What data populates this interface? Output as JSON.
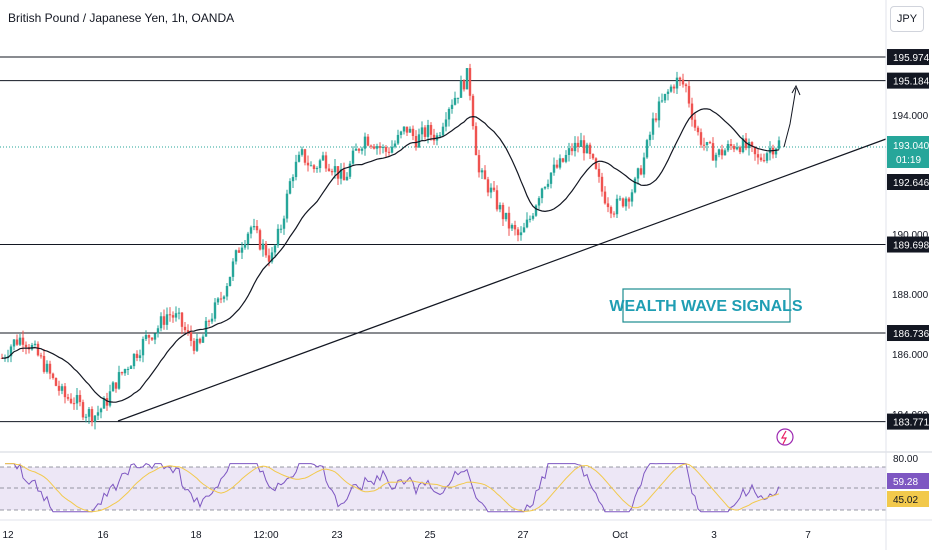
{
  "header": {
    "symbol_title": "British Pound / Japanese Yen, 1h, OANDA",
    "currency_button": "JPY"
  },
  "colors": {
    "up": "#26a69a",
    "down": "#ef5350",
    "ma": "#131722",
    "rsi_line": "#7e57c2",
    "rsi_ma": "#f2c94c",
    "rsi_band": "#ede7f6",
    "accent_teal": "#1b8c8f",
    "price_tag": "#26a69a"
  },
  "watermark": "WEALTH WAVE SIGNALS",
  "chart_data": {
    "type": "candlestick",
    "price_axis_ticks": [
      "194.000",
      "190.000",
      "188.000",
      "186.000",
      "184.000"
    ],
    "x_tick_labels": [
      "12",
      "16",
      "18",
      "12:00",
      "23",
      "25",
      "27",
      "Oct",
      "3",
      "7"
    ],
    "horizontal_levels": [
      "195.974",
      "195.184",
      "189.698",
      "186.736",
      "183.771"
    ],
    "current_price": "193.040",
    "countdown": "01:19",
    "trendline_marker": "192.646",
    "close_path": [
      185.9,
      186.4,
      186.6,
      186.2,
      185.7,
      185.1,
      184.6,
      184.5,
      184.1,
      184.0,
      184.4,
      185.1,
      185.6,
      186.1,
      186.6,
      186.9,
      187.4,
      187.2,
      186.6,
      186.2,
      187.2,
      187.8,
      188.7,
      189.7,
      190.3,
      189.7,
      189.2,
      190.4,
      192.1,
      192.7,
      192.2,
      192.6,
      192.3,
      191.8,
      192.7,
      193.3,
      193.1,
      192.8,
      193.1,
      193.6,
      193.2,
      193.5,
      193.3,
      194.3,
      194.8,
      195.4,
      192.1,
      191.6,
      190.9,
      190.3,
      189.9,
      190.6,
      191.6,
      192.1,
      192.4,
      192.9,
      193.1,
      192.4,
      191.4,
      190.9,
      191.2,
      191.6,
      192.6,
      194.0,
      194.6,
      195.2,
      195.0,
      193.5,
      192.9,
      192.7,
      192.9,
      193.1,
      192.9,
      192.5,
      192.9,
      193.1
    ],
    "moving_average": "black line on price pane",
    "rsi": {
      "levels": [
        "80.00",
        "59.28",
        "45.02"
      ],
      "value": "59.28",
      "ma_value": "45.02"
    }
  }
}
